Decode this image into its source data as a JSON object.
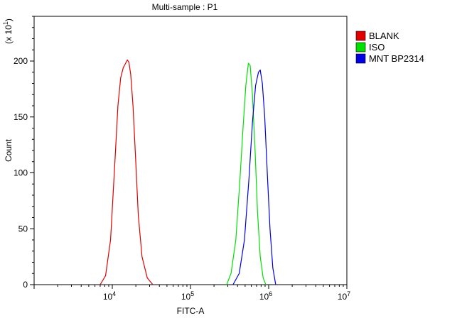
{
  "chart_data": {
    "type": "line",
    "title": "Multi-sample : P1",
    "xlabel": "FITC-A",
    "ylabel": "Count",
    "y_multiplier_label": "(x 10",
    "y_multiplier_exp": "1",
    "y_multiplier_close": ")",
    "x_scale": "log",
    "xlim": [
      1000,
      10000000
    ],
    "ylim": [
      0,
      240
    ],
    "x_ticks": [
      {
        "value": 10000,
        "base": "10",
        "exp": "4"
      },
      {
        "value": 100000,
        "base": "10",
        "exp": "5"
      },
      {
        "value": 1000000,
        "base": "10",
        "exp": "6"
      },
      {
        "value": 10000000,
        "base": "10",
        "exp": "7"
      }
    ],
    "y_ticks": [
      {
        "value": 0,
        "label": "0"
      },
      {
        "value": 50,
        "label": "50"
      },
      {
        "value": 100,
        "label": "100"
      },
      {
        "value": 150,
        "label": "150"
      },
      {
        "value": 200,
        "label": "200"
      }
    ],
    "legend_position": "top-right",
    "series": [
      {
        "name": "BLANK",
        "color": "#e00000",
        "points": [
          [
            7000,
            0
          ],
          [
            8200,
            8
          ],
          [
            9500,
            40
          ],
          [
            10800,
            110
          ],
          [
            11800,
            160
          ],
          [
            12800,
            185
          ],
          [
            13800,
            194
          ],
          [
            14800,
            198
          ],
          [
            15600,
            201
          ],
          [
            16300,
            199
          ],
          [
            17200,
            188
          ],
          [
            18400,
            160
          ],
          [
            19800,
            115
          ],
          [
            21500,
            62
          ],
          [
            24000,
            25
          ],
          [
            28000,
            6
          ],
          [
            33000,
            0
          ]
        ]
      },
      {
        "name": "ISO",
        "color": "#00e000",
        "points": [
          [
            290000,
            0
          ],
          [
            330000,
            10
          ],
          [
            380000,
            40
          ],
          [
            430000,
            95
          ],
          [
            470000,
            140
          ],
          [
            510000,
            178
          ],
          [
            550000,
            198
          ],
          [
            580000,
            196
          ],
          [
            620000,
            170
          ],
          [
            670000,
            120
          ],
          [
            720000,
            65
          ],
          [
            780000,
            25
          ],
          [
            850000,
            6
          ],
          [
            920000,
            0
          ]
        ]
      },
      {
        "name": "MNT BP2314",
        "color": "#0000e0",
        "points": [
          [
            350000,
            0
          ],
          [
            420000,
            10
          ],
          [
            490000,
            40
          ],
          [
            560000,
            95
          ],
          [
            620000,
            145
          ],
          [
            680000,
            178
          ],
          [
            740000,
            190
          ],
          [
            780000,
            192
          ],
          [
            830000,
            180
          ],
          [
            890000,
            150
          ],
          [
            960000,
            100
          ],
          [
            1040000,
            50
          ],
          [
            1130000,
            15
          ],
          [
            1230000,
            0
          ]
        ]
      }
    ]
  }
}
